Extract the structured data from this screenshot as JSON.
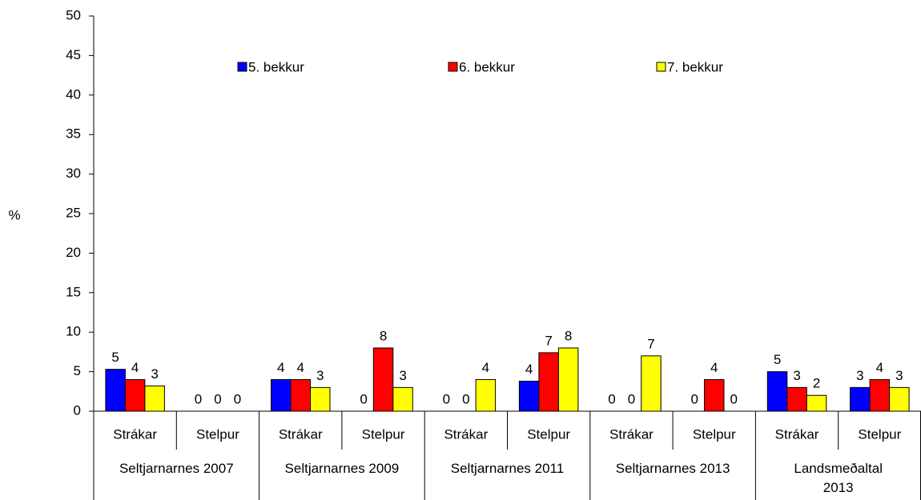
{
  "chart_data": {
    "type": "bar",
    "y_label": "%",
    "categories": [
      "Strákar",
      "Stelpur",
      "Strákar",
      "Stelpur",
      "Strákar",
      "Stelpur",
      "Strákar",
      "Stelpur",
      "Strákar",
      "Stelpur"
    ],
    "groups": [
      "Seltjarnarnes 2007",
      "Seltjarnarnes 2009",
      "Seltjarnarnes 2011",
      "Seltjarnarnes 2013",
      "Landsmeðaltal\n2013"
    ],
    "series": [
      {
        "name": "5. bekkur",
        "color": "#0000ff",
        "values": [
          5.3,
          0,
          4,
          0,
          0,
          3.8,
          0,
          0,
          5,
          3
        ],
        "value_labels": [
          "5",
          "0",
          "4",
          "0",
          "0",
          "4",
          "0",
          "0",
          "5",
          "3"
        ]
      },
      {
        "name": "6. bekkur",
        "color": "#ff0000",
        "values": [
          4,
          0,
          4,
          8,
          0,
          7.4,
          0,
          4,
          3,
          4
        ],
        "value_labels": [
          "4",
          "0",
          "4",
          "8",
          "0",
          "7",
          "0",
          "4",
          "3",
          "4"
        ]
      },
      {
        "name": "7. bekkur",
        "color": "#ffff00",
        "values": [
          3.2,
          0,
          3,
          3,
          4,
          8,
          7,
          0,
          2,
          3
        ],
        "value_labels": [
          "3",
          "0",
          "3",
          "3",
          "4",
          "8",
          "7",
          "0",
          "2",
          "3"
        ]
      }
    ],
    "ylim": [
      0,
      50
    ],
    "yticks": [
      0,
      5,
      10,
      15,
      20,
      25,
      30,
      35,
      40,
      45,
      50
    ],
    "legend": "top"
  }
}
